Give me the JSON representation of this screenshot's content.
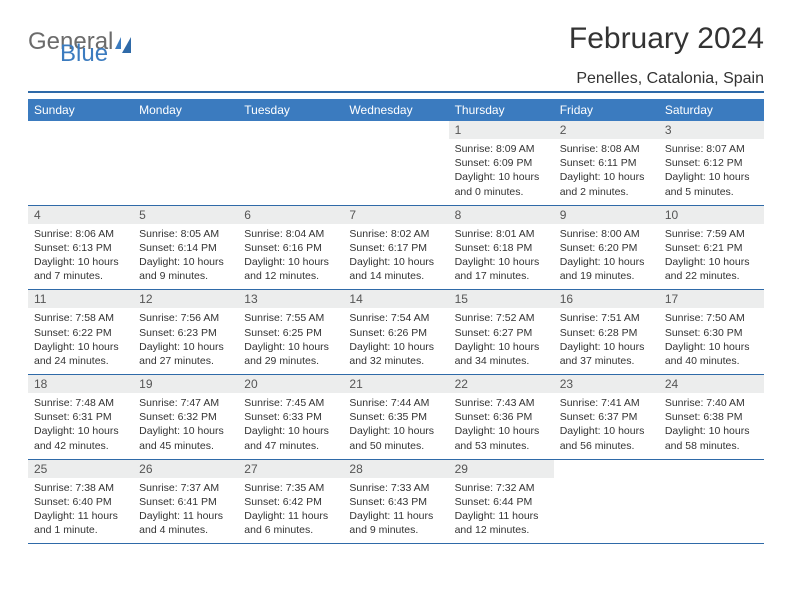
{
  "logo": {
    "word1": "General",
    "word2": "Blue"
  },
  "title": "February 2024",
  "location": "Penelles, Catalonia, Spain",
  "colors": {
    "header_bg": "#3b7bbf",
    "header_text": "#ffffff",
    "rule": "#2f6aa8",
    "daynum_bg": "#eceded",
    "text": "#333333"
  },
  "typography": {
    "title_fontsize": 30,
    "location_fontsize": 16,
    "dayheader_fontsize": 12,
    "body_fontsize": 10.5
  },
  "layout": {
    "columns": 7,
    "rows": 5
  },
  "day_headers": [
    "Sunday",
    "Monday",
    "Tuesday",
    "Wednesday",
    "Thursday",
    "Friday",
    "Saturday"
  ],
  "weeks": [
    [
      {
        "n": "",
        "sr": "",
        "ss": "",
        "dl": ""
      },
      {
        "n": "",
        "sr": "",
        "ss": "",
        "dl": ""
      },
      {
        "n": "",
        "sr": "",
        "ss": "",
        "dl": ""
      },
      {
        "n": "",
        "sr": "",
        "ss": "",
        "dl": ""
      },
      {
        "n": "1",
        "sr": "Sunrise: 8:09 AM",
        "ss": "Sunset: 6:09 PM",
        "dl": "Daylight: 10 hours and 0 minutes."
      },
      {
        "n": "2",
        "sr": "Sunrise: 8:08 AM",
        "ss": "Sunset: 6:11 PM",
        "dl": "Daylight: 10 hours and 2 minutes."
      },
      {
        "n": "3",
        "sr": "Sunrise: 8:07 AM",
        "ss": "Sunset: 6:12 PM",
        "dl": "Daylight: 10 hours and 5 minutes."
      }
    ],
    [
      {
        "n": "4",
        "sr": "Sunrise: 8:06 AM",
        "ss": "Sunset: 6:13 PM",
        "dl": "Daylight: 10 hours and 7 minutes."
      },
      {
        "n": "5",
        "sr": "Sunrise: 8:05 AM",
        "ss": "Sunset: 6:14 PM",
        "dl": "Daylight: 10 hours and 9 minutes."
      },
      {
        "n": "6",
        "sr": "Sunrise: 8:04 AM",
        "ss": "Sunset: 6:16 PM",
        "dl": "Daylight: 10 hours and 12 minutes."
      },
      {
        "n": "7",
        "sr": "Sunrise: 8:02 AM",
        "ss": "Sunset: 6:17 PM",
        "dl": "Daylight: 10 hours and 14 minutes."
      },
      {
        "n": "8",
        "sr": "Sunrise: 8:01 AM",
        "ss": "Sunset: 6:18 PM",
        "dl": "Daylight: 10 hours and 17 minutes."
      },
      {
        "n": "9",
        "sr": "Sunrise: 8:00 AM",
        "ss": "Sunset: 6:20 PM",
        "dl": "Daylight: 10 hours and 19 minutes."
      },
      {
        "n": "10",
        "sr": "Sunrise: 7:59 AM",
        "ss": "Sunset: 6:21 PM",
        "dl": "Daylight: 10 hours and 22 minutes."
      }
    ],
    [
      {
        "n": "11",
        "sr": "Sunrise: 7:58 AM",
        "ss": "Sunset: 6:22 PM",
        "dl": "Daylight: 10 hours and 24 minutes."
      },
      {
        "n": "12",
        "sr": "Sunrise: 7:56 AM",
        "ss": "Sunset: 6:23 PM",
        "dl": "Daylight: 10 hours and 27 minutes."
      },
      {
        "n": "13",
        "sr": "Sunrise: 7:55 AM",
        "ss": "Sunset: 6:25 PM",
        "dl": "Daylight: 10 hours and 29 minutes."
      },
      {
        "n": "14",
        "sr": "Sunrise: 7:54 AM",
        "ss": "Sunset: 6:26 PM",
        "dl": "Daylight: 10 hours and 32 minutes."
      },
      {
        "n": "15",
        "sr": "Sunrise: 7:52 AM",
        "ss": "Sunset: 6:27 PM",
        "dl": "Daylight: 10 hours and 34 minutes."
      },
      {
        "n": "16",
        "sr": "Sunrise: 7:51 AM",
        "ss": "Sunset: 6:28 PM",
        "dl": "Daylight: 10 hours and 37 minutes."
      },
      {
        "n": "17",
        "sr": "Sunrise: 7:50 AM",
        "ss": "Sunset: 6:30 PM",
        "dl": "Daylight: 10 hours and 40 minutes."
      }
    ],
    [
      {
        "n": "18",
        "sr": "Sunrise: 7:48 AM",
        "ss": "Sunset: 6:31 PM",
        "dl": "Daylight: 10 hours and 42 minutes."
      },
      {
        "n": "19",
        "sr": "Sunrise: 7:47 AM",
        "ss": "Sunset: 6:32 PM",
        "dl": "Daylight: 10 hours and 45 minutes."
      },
      {
        "n": "20",
        "sr": "Sunrise: 7:45 AM",
        "ss": "Sunset: 6:33 PM",
        "dl": "Daylight: 10 hours and 47 minutes."
      },
      {
        "n": "21",
        "sr": "Sunrise: 7:44 AM",
        "ss": "Sunset: 6:35 PM",
        "dl": "Daylight: 10 hours and 50 minutes."
      },
      {
        "n": "22",
        "sr": "Sunrise: 7:43 AM",
        "ss": "Sunset: 6:36 PM",
        "dl": "Daylight: 10 hours and 53 minutes."
      },
      {
        "n": "23",
        "sr": "Sunrise: 7:41 AM",
        "ss": "Sunset: 6:37 PM",
        "dl": "Daylight: 10 hours and 56 minutes."
      },
      {
        "n": "24",
        "sr": "Sunrise: 7:40 AM",
        "ss": "Sunset: 6:38 PM",
        "dl": "Daylight: 10 hours and 58 minutes."
      }
    ],
    [
      {
        "n": "25",
        "sr": "Sunrise: 7:38 AM",
        "ss": "Sunset: 6:40 PM",
        "dl": "Daylight: 11 hours and 1 minute."
      },
      {
        "n": "26",
        "sr": "Sunrise: 7:37 AM",
        "ss": "Sunset: 6:41 PM",
        "dl": "Daylight: 11 hours and 4 minutes."
      },
      {
        "n": "27",
        "sr": "Sunrise: 7:35 AM",
        "ss": "Sunset: 6:42 PM",
        "dl": "Daylight: 11 hours and 6 minutes."
      },
      {
        "n": "28",
        "sr": "Sunrise: 7:33 AM",
        "ss": "Sunset: 6:43 PM",
        "dl": "Daylight: 11 hours and 9 minutes."
      },
      {
        "n": "29",
        "sr": "Sunrise: 7:32 AM",
        "ss": "Sunset: 6:44 PM",
        "dl": "Daylight: 11 hours and 12 minutes."
      },
      {
        "n": "",
        "sr": "",
        "ss": "",
        "dl": ""
      },
      {
        "n": "",
        "sr": "",
        "ss": "",
        "dl": ""
      }
    ]
  ]
}
